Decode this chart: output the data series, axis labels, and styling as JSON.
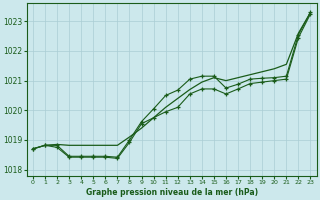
{
  "background_color": "#cce8ec",
  "grid_color": "#aacdd4",
  "line_color": "#1a5c1a",
  "title": "Graphe pression niveau de la mer (hPa)",
  "xlim": [
    -0.5,
    23.5
  ],
  "ylim": [
    1017.8,
    1023.6
  ],
  "yticks": [
    1018,
    1019,
    1020,
    1021,
    1022,
    1023
  ],
  "xticks": [
    0,
    1,
    2,
    3,
    4,
    5,
    6,
    7,
    8,
    9,
    10,
    11,
    12,
    13,
    14,
    15,
    16,
    17,
    18,
    19,
    20,
    21,
    22,
    23
  ],
  "smooth": [
    1018.7,
    1018.82,
    1018.85,
    1018.82,
    1018.82,
    1018.82,
    1018.82,
    1018.82,
    1019.1,
    1019.4,
    1019.75,
    1020.1,
    1020.4,
    1020.7,
    1020.95,
    1021.1,
    1021.0,
    1021.1,
    1021.2,
    1021.3,
    1021.4,
    1021.55,
    1022.6,
    1023.3
  ],
  "line_upper": [
    1018.7,
    1018.82,
    1018.82,
    1018.45,
    1018.45,
    1018.45,
    1018.45,
    1018.42,
    1019.0,
    1019.62,
    1020.05,
    1020.5,
    1020.68,
    1021.05,
    1021.15,
    1021.15,
    1020.75,
    1020.88,
    1021.05,
    1021.08,
    1021.1,
    1021.15,
    1022.55,
    1023.3
  ],
  "line_lower": [
    1018.7,
    1018.82,
    1018.75,
    1018.42,
    1018.42,
    1018.42,
    1018.42,
    1018.38,
    1018.92,
    1019.55,
    1019.75,
    1019.95,
    1020.1,
    1020.55,
    1020.72,
    1020.72,
    1020.55,
    1020.72,
    1020.9,
    1020.95,
    1021.0,
    1021.05,
    1022.45,
    1023.25
  ]
}
